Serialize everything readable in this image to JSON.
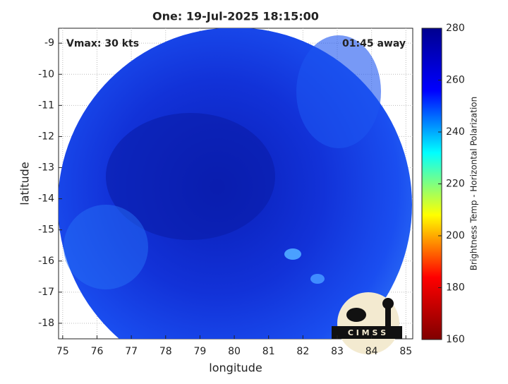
{
  "chart_data": {
    "type": "image",
    "title": "One: 19-Jul-2025 18:15:00",
    "annotations": [
      "Vmax: 30 kts",
      "01:45 away"
    ],
    "xlabel": "longitude",
    "ylabel": "latitude",
    "xlim": [
      74.88,
      85.2
    ],
    "xticks": [
      75,
      76,
      77,
      78,
      79,
      80,
      81,
      82,
      83,
      84,
      85
    ],
    "ylim": [
      -18.5,
      -8.52
    ],
    "yticks": [
      -9,
      -10,
      -11,
      -12,
      -13,
      -14,
      -15,
      -16,
      -17,
      -18
    ],
    "grid": true,
    "colorbar": {
      "label": "Brightness Temp - Horizontal Polarization",
      "lim": [
        160,
        280
      ],
      "ticks": [
        160,
        180,
        200,
        220,
        240,
        260,
        280
      ],
      "colors": [
        "#800000",
        "#ff0000",
        "#ffff00",
        "#00ffff",
        "#0000ff",
        "#00008f"
      ]
    },
    "logo": "C I M S S"
  }
}
